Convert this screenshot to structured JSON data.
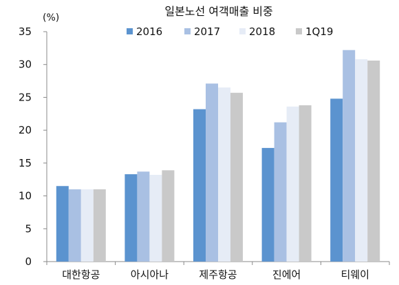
{
  "chart_data": {
    "type": "bar",
    "title": "일본노선 여객매출 비중",
    "unit_label": "(%)",
    "categories": [
      "대한항공",
      "아시아나",
      "제주항공",
      "진에어",
      "티웨이"
    ],
    "series": [
      {
        "name": "2016",
        "color": "#5b93cf",
        "values": [
          11.5,
          13.3,
          23.2,
          17.3,
          24.8
        ]
      },
      {
        "name": "2017",
        "color": "#a9c0e3",
        "values": [
          11.0,
          13.7,
          27.1,
          21.2,
          32.2
        ]
      },
      {
        "name": "2018",
        "color": "#e6ecf6",
        "values": [
          11.0,
          13.2,
          26.5,
          23.6,
          30.8
        ]
      },
      {
        "name": "1Q19",
        "color": "#c9c9c9",
        "values": [
          11.0,
          13.9,
          25.7,
          23.8,
          30.6
        ]
      }
    ],
    "ylim": [
      0,
      35
    ],
    "yticks": [
      0,
      5,
      10,
      15,
      20,
      25,
      30,
      35
    ],
    "grid": false,
    "legend_position": "top"
  }
}
